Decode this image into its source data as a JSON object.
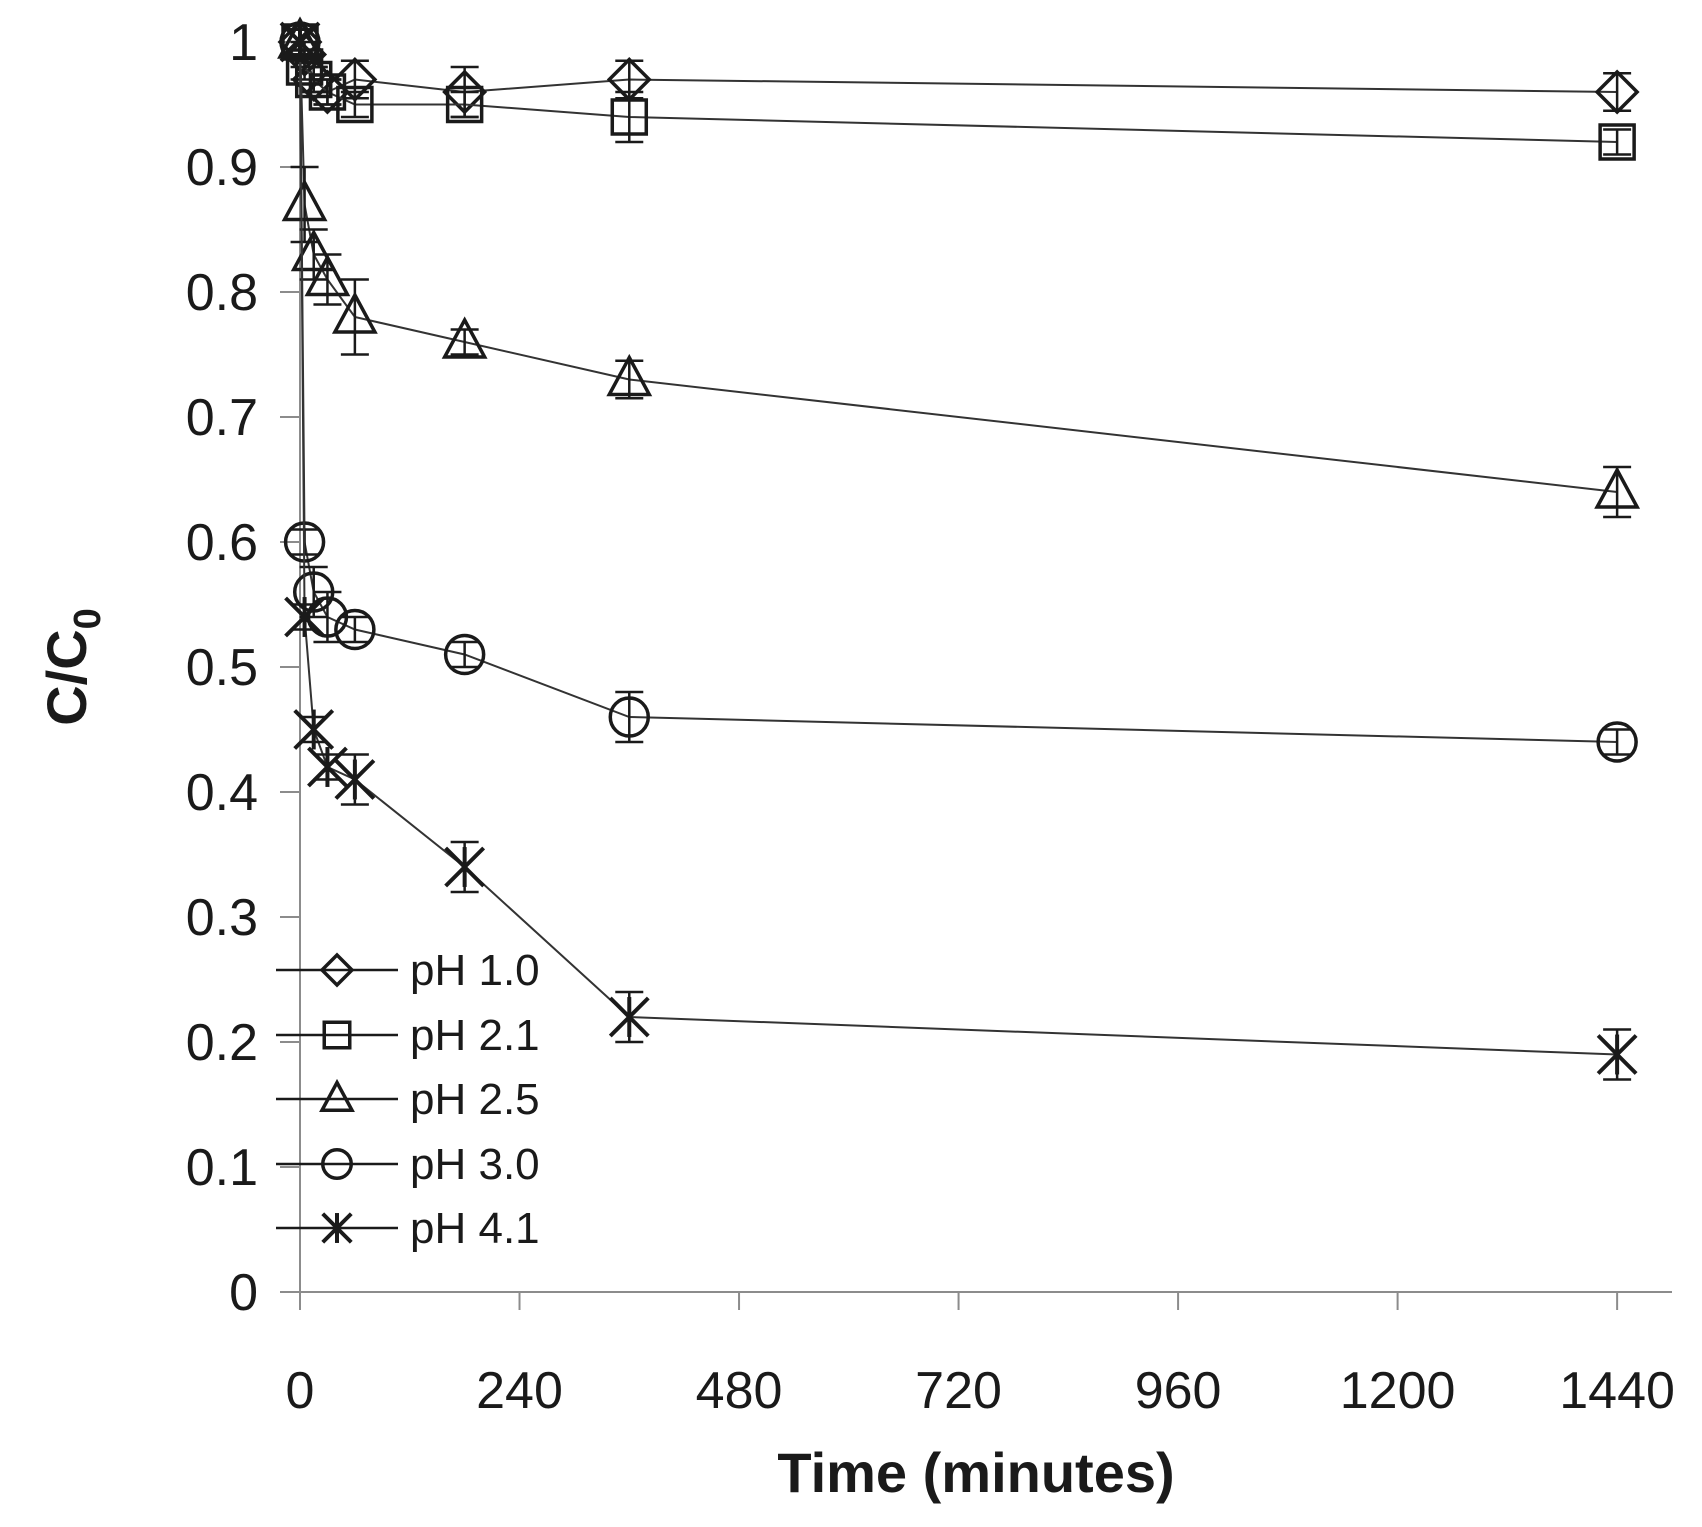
{
  "chart_data": {
    "type": "line",
    "title": "",
    "xlabel": "Time (minutes)",
    "ylabel_main": "C/C",
    "ylabel_sub": "0",
    "xlim": [
      0,
      1500
    ],
    "ylim": [
      0,
      1
    ],
    "x_ticks": [
      0,
      240,
      480,
      720,
      960,
      1200,
      1440
    ],
    "x_tick_labels": [
      "0",
      "240",
      "480",
      "720",
      "960",
      "1200",
      "1440"
    ],
    "y_ticks": [
      0,
      0.1,
      0.2,
      0.3,
      0.4,
      0.5,
      0.6,
      0.7,
      0.8,
      0.9,
      1
    ],
    "y_tick_labels": [
      "0",
      "0.1",
      "0.2",
      "0.3",
      "0.4",
      "0.5",
      "0.6",
      "0.7",
      "0.8",
      "0.9",
      "1"
    ],
    "grid": false,
    "legend_position": "bottom-left",
    "x": [
      0,
      5,
      15,
      30,
      60,
      180,
      360,
      1440
    ],
    "series": [
      {
        "name": "pH 1.0",
        "marker": "diamond",
        "values": [
          1.0,
          0.99,
          0.97,
          0.96,
          0.97,
          0.96,
          0.97,
          0.96
        ],
        "errors": [
          0.01,
          0.01,
          0.01,
          0.01,
          0.015,
          0.02,
          0.015,
          0.015
        ]
      },
      {
        "name": "pH 2.1",
        "marker": "square",
        "values": [
          1.0,
          0.98,
          0.97,
          0.96,
          0.95,
          0.95,
          0.94,
          0.92
        ],
        "errors": [
          0.01,
          0.01,
          0.01,
          0.01,
          0.01,
          0.01,
          0.02,
          0.01
        ]
      },
      {
        "name": "pH 2.5",
        "marker": "triangle",
        "values": [
          1.0,
          0.87,
          0.83,
          0.81,
          0.78,
          0.76,
          0.73,
          0.64
        ],
        "errors": [
          0.01,
          0.03,
          0.02,
          0.02,
          0.03,
          0.01,
          0.015,
          0.02
        ]
      },
      {
        "name": "pH 3.0",
        "marker": "circle",
        "values": [
          1.0,
          0.6,
          0.56,
          0.54,
          0.53,
          0.51,
          0.46,
          0.44
        ],
        "errors": [
          0.01,
          0.01,
          0.02,
          0.02,
          0.01,
          0.01,
          0.02,
          0.01
        ]
      },
      {
        "name": "pH 4.1",
        "marker": "asterisk",
        "values": [
          1.0,
          0.54,
          0.45,
          0.42,
          0.41,
          0.34,
          0.22,
          0.19
        ],
        "errors": [
          0.01,
          0.01,
          0.01,
          0.01,
          0.02,
          0.02,
          0.02,
          0.02
        ]
      }
    ]
  }
}
